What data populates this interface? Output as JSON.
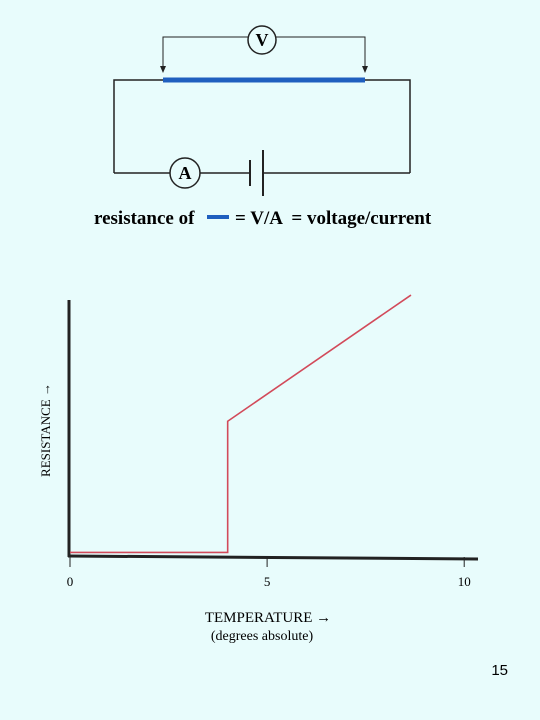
{
  "circuit": {
    "voltmeter": "V",
    "ammeter": "A",
    "caption_prefix": "resistance of",
    "caption_suffix": "= V/A  = voltage/current"
  },
  "chart_data": {
    "type": "line",
    "x": [
      0,
      4.0,
      4.0,
      8.65
    ],
    "values": [
      1,
      1,
      53,
      103
    ],
    "color": "#d24a5a",
    "xlim": [
      0,
      10.35
    ],
    "ylim": [
      0,
      105
    ],
    "xticks": [
      0,
      5,
      10
    ],
    "x_label": "TEMPERATURE →",
    "x_sublabel": "(degrees absolute)",
    "y_label": "RESISTANCE →"
  },
  "page_number": "15"
}
